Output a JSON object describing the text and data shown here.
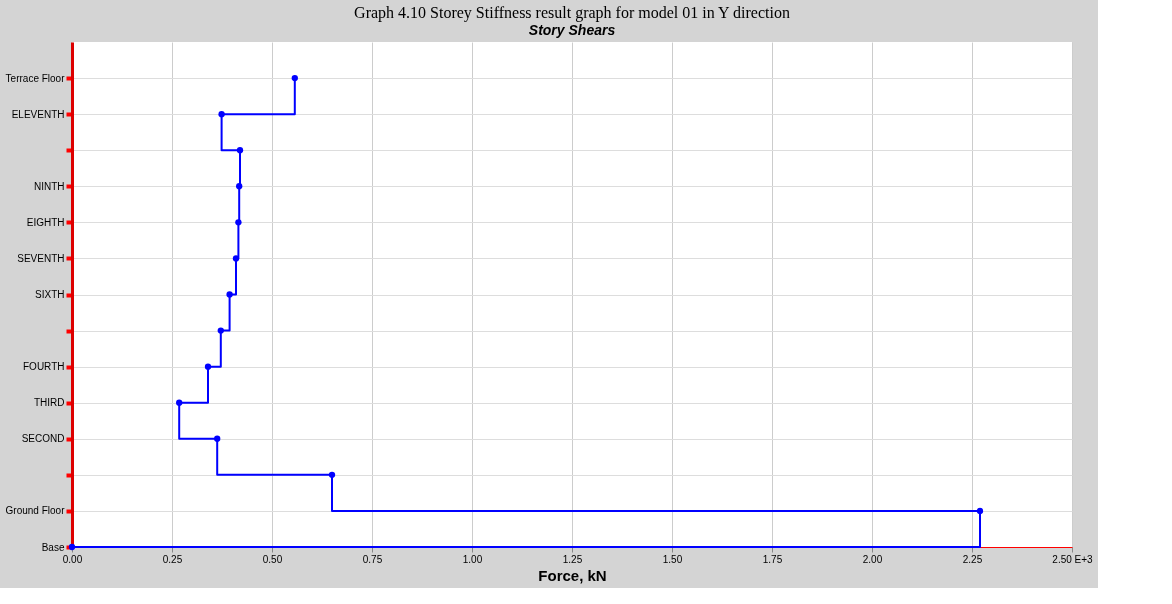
{
  "chart_data": {
    "type": "step",
    "orientation": "horizontal",
    "title": "Graph 4.10 Storey Stiffness result graph for model 01 in Y direction",
    "subtitle": "Story Shears",
    "xlabel": "Force, kN",
    "categories": [
      "Terrace Floor",
      "ELEVENTH",
      null,
      "NINTH",
      "EIGHTH",
      "SEVENTH",
      "SIXTH",
      null,
      "FOURTH",
      "THIRD",
      "SECOND",
      null,
      "Ground Floor",
      "Base"
    ],
    "series": [
      {
        "color": "#0000ff",
        "values": [
          0.557,
          0.374,
          0.42,
          0.418,
          0.416,
          0.41,
          0.394,
          0.372,
          0.34,
          0.268,
          0.363,
          0.65,
          2.27,
          0
        ]
      }
    ],
    "xlim": [
      0,
      2.5
    ],
    "xticks": [
      {
        "value": 0,
        "label": "0.00"
      },
      {
        "value": 0.25,
        "label": "0.25"
      },
      {
        "value": 0.5,
        "label": "0.50"
      },
      {
        "value": 0.75,
        "label": "0.75"
      },
      {
        "value": 1,
        "label": "1.00"
      },
      {
        "value": 1.25,
        "label": "1.25"
      },
      {
        "value": 1.5,
        "label": "1.50"
      },
      {
        "value": 1.75,
        "label": "1.75"
      },
      {
        "value": 2,
        "label": "2.00"
      },
      {
        "value": 2.25,
        "label": "2.25"
      },
      {
        "value": 2.5,
        "label": "2.50 E+3"
      }
    ],
    "grid": true,
    "marker": "circle",
    "line_style": "solid"
  }
}
